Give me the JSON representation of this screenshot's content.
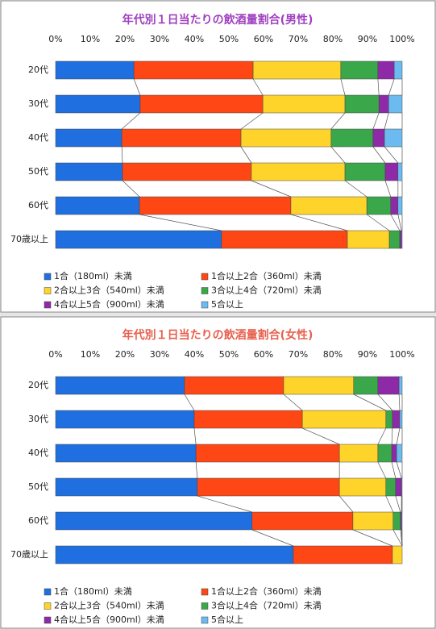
{
  "chart_data": [
    {
      "type": "stacked-bar-horizontal",
      "title": "年代別１日当たりの飲酒量割合(男性)",
      "title_color": "#a040c0",
      "categories": [
        "20代",
        "30代",
        "40代",
        "50代",
        "60代",
        "70歳以上"
      ],
      "series": [
        {
          "name": "1合（180ml）未満",
          "color": "#1f6fe0",
          "values": [
            22.6,
            24.4,
            19.1,
            19.3,
            24.2,
            47.9
          ]
        },
        {
          "name": "1合以上2合（360ml）未満",
          "color": "#ff4715",
          "values": [
            34.4,
            35.4,
            34.4,
            37.2,
            43.7,
            36.3
          ]
        },
        {
          "name": "2合以上3合（540ml）未満",
          "color": "#ffd42a",
          "values": [
            25.3,
            23.7,
            26.0,
            27.0,
            21.9,
            12.1
          ]
        },
        {
          "name": "3合以上4合（720ml）未満",
          "color": "#3aa84a",
          "values": [
            10.7,
            9.8,
            12.1,
            11.6,
            6.9,
            3.0
          ]
        },
        {
          "name": "4合以上5合（900ml）未満",
          "color": "#8e2aa8",
          "values": [
            4.7,
            2.8,
            3.3,
            3.7,
            2.1,
            0.5
          ]
        },
        {
          "name": "5合以上",
          "color": "#6bbbf0",
          "values": [
            2.3,
            3.9,
            5.1,
            1.2,
            1.2,
            0.2
          ]
        }
      ],
      "xlim": [
        0,
        100
      ],
      "xticks": [
        {
          "value": 0,
          "label": "0%"
        },
        {
          "value": 10,
          "label": "10%"
        },
        {
          "value": 20,
          "label": "20%"
        },
        {
          "value": 30,
          "label": "30%"
        },
        {
          "value": 40,
          "label": "40%"
        },
        {
          "value": 50,
          "label": "50%"
        },
        {
          "value": 60,
          "label": "60%"
        },
        {
          "value": 70,
          "label": "70%"
        },
        {
          "value": 80,
          "label": "80%"
        },
        {
          "value": 90,
          "label": "90%"
        },
        {
          "value": 100,
          "label": "100%"
        }
      ]
    },
    {
      "type": "stacked-bar-horizontal",
      "title": "年代別１日当たりの飲酒量割合(女性)",
      "title_color": "#e8604e",
      "categories": [
        "20代",
        "30代",
        "40代",
        "50代",
        "60代",
        "70歳以上"
      ],
      "series": [
        {
          "name": "1合（180ml）未満",
          "color": "#1f6fe0",
          "values": [
            37.2,
            40.0,
            40.5,
            40.9,
            56.7,
            68.6
          ]
        },
        {
          "name": "1合以上2合（360ml）未満",
          "color": "#ff4715",
          "values": [
            28.6,
            31.2,
            41.4,
            41.0,
            29.1,
            28.6
          ]
        },
        {
          "name": "2合以上3合（540ml）未満",
          "color": "#ffd42a",
          "values": [
            20.2,
            24.1,
            11.1,
            13.4,
            11.6,
            2.8
          ]
        },
        {
          "name": "3合以上4合（720ml）未満",
          "color": "#3aa84a",
          "values": [
            7.0,
            1.9,
            4.0,
            2.8,
            2.1,
            0
          ]
        },
        {
          "name": "4合以上5合（900ml）未満",
          "color": "#8e2aa8",
          "values": [
            6.1,
            2.1,
            1.4,
            1.7,
            0.3,
            0
          ]
        },
        {
          "name": "5合以上",
          "color": "#6bbbf0",
          "values": [
            0.9,
            0.7,
            1.6,
            0.2,
            0.2,
            0
          ]
        }
      ],
      "xlim": [
        0,
        100
      ],
      "xticks": [
        {
          "value": 0,
          "label": "0%"
        },
        {
          "value": 10,
          "label": "10%"
        },
        {
          "value": 20,
          "label": "20%"
        },
        {
          "value": 30,
          "label": "30%"
        },
        {
          "value": 40,
          "label": "40%"
        },
        {
          "value": 50,
          "label": "50%"
        },
        {
          "value": 60,
          "label": "60%"
        },
        {
          "value": 70,
          "label": "70%"
        },
        {
          "value": 80,
          "label": "80%"
        },
        {
          "value": 90,
          "label": "90%"
        },
        {
          "value": 100,
          "label": "100%"
        }
      ]
    }
  ]
}
